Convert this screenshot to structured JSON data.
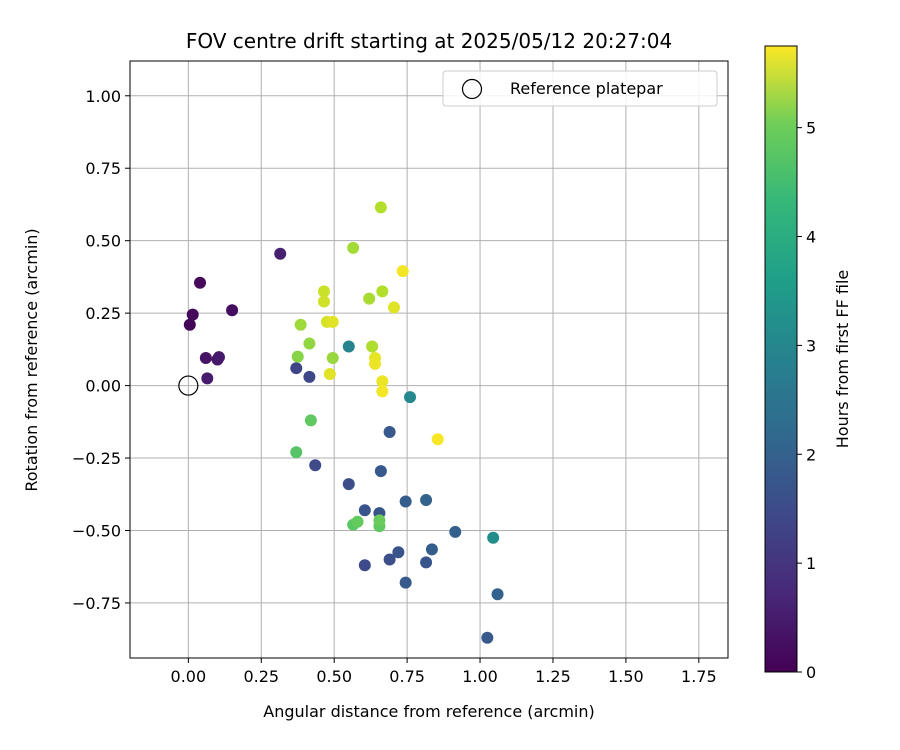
{
  "chart_data": {
    "type": "scatter",
    "title": "FOV centre drift starting at 2025/05/12 20:27:04",
    "xlabel": "Angular distance from reference (arcmin)",
    "ylabel": "Rotation from reference (arcmin)",
    "xlim": [
      -0.2,
      1.85
    ],
    "ylim": [
      -0.94,
      1.12
    ],
    "xticks": [
      0.0,
      0.25,
      0.5,
      0.75,
      1.0,
      1.25,
      1.5,
      1.75
    ],
    "xtick_labels": [
      "0.00",
      "0.25",
      "0.50",
      "0.75",
      "1.00",
      "1.25",
      "1.50",
      "1.75"
    ],
    "yticks": [
      -0.75,
      -0.5,
      -0.25,
      0.0,
      0.25,
      0.5,
      0.75,
      1.0
    ],
    "ytick_labels": [
      "−0.75",
      "−0.50",
      "−0.25",
      "0.00",
      "0.25",
      "0.50",
      "0.75",
      "1.00"
    ],
    "grid": true,
    "legend": {
      "placement": "top-right",
      "entries": [
        "Reference platepar"
      ]
    },
    "reference_point": {
      "x": 0.0,
      "y": 0.0
    },
    "colorbar": {
      "label": "Hours from first FF file",
      "range": [
        0,
        5.75
      ],
      "ticks": [
        0,
        1,
        2,
        3,
        4,
        5
      ],
      "tick_labels": [
        "0",
        "1",
        "2",
        "3",
        "4",
        "5"
      ],
      "colormap": "viridis"
    },
    "points": [
      {
        "x": 0.04,
        "y": 0.355,
        "t": 0.15
      },
      {
        "x": 0.015,
        "y": 0.245,
        "t": 0.1
      },
      {
        "x": 0.005,
        "y": 0.21,
        "t": 0.05
      },
      {
        "x": 0.15,
        "y": 0.26,
        "t": 0.2
      },
      {
        "x": 0.06,
        "y": 0.095,
        "t": 0.3
      },
      {
        "x": 0.1,
        "y": 0.09,
        "t": 0.35
      },
      {
        "x": 0.105,
        "y": 0.098,
        "t": 0.4
      },
      {
        "x": 0.065,
        "y": 0.025,
        "t": 0.45
      },
      {
        "x": 0.315,
        "y": 0.455,
        "t": 0.5
      },
      {
        "x": 0.37,
        "y": 0.06,
        "t": 1.2
      },
      {
        "x": 0.415,
        "y": 0.03,
        "t": 1.25
      },
      {
        "x": 0.435,
        "y": -0.275,
        "t": 1.3
      },
      {
        "x": 0.55,
        "y": -0.34,
        "t": 1.4
      },
      {
        "x": 0.605,
        "y": -0.43,
        "t": 1.5
      },
      {
        "x": 0.655,
        "y": -0.44,
        "t": 1.5
      },
      {
        "x": 0.66,
        "y": -0.295,
        "t": 1.6
      },
      {
        "x": 0.69,
        "y": -0.16,
        "t": 1.6
      },
      {
        "x": 0.605,
        "y": -0.62,
        "t": 1.3
      },
      {
        "x": 0.69,
        "y": -0.6,
        "t": 1.4
      },
      {
        "x": 0.72,
        "y": -0.575,
        "t": 1.5
      },
      {
        "x": 0.745,
        "y": -0.4,
        "t": 1.7
      },
      {
        "x": 0.745,
        "y": -0.68,
        "t": 1.6
      },
      {
        "x": 0.815,
        "y": -0.395,
        "t": 1.8
      },
      {
        "x": 0.815,
        "y": -0.61,
        "t": 1.5
      },
      {
        "x": 0.835,
        "y": -0.565,
        "t": 1.7
      },
      {
        "x": 0.915,
        "y": -0.505,
        "t": 1.75
      },
      {
        "x": 1.025,
        "y": -0.87,
        "t": 1.6
      },
      {
        "x": 1.06,
        "y": -0.72,
        "t": 1.8
      },
      {
        "x": 0.55,
        "y": 0.135,
        "t": 2.6
      },
      {
        "x": 0.76,
        "y": -0.04,
        "t": 2.7
      },
      {
        "x": 1.045,
        "y": -0.525,
        "t": 2.8
      },
      {
        "x": 0.37,
        "y": -0.23,
        "t": 4.2
      },
      {
        "x": 0.42,
        "y": -0.12,
        "t": 4.3
      },
      {
        "x": 0.565,
        "y": -0.48,
        "t": 4.25
      },
      {
        "x": 0.58,
        "y": -0.47,
        "t": 4.35
      },
      {
        "x": 0.655,
        "y": -0.485,
        "t": 4.3
      },
      {
        "x": 0.655,
        "y": -0.465,
        "t": 4.4
      },
      {
        "x": 0.375,
        "y": 0.1,
        "t": 4.7
      },
      {
        "x": 0.385,
        "y": 0.21,
        "t": 4.9
      },
      {
        "x": 0.415,
        "y": 0.145,
        "t": 4.8
      },
      {
        "x": 0.495,
        "y": 0.095,
        "t": 4.85
      },
      {
        "x": 0.565,
        "y": 0.475,
        "t": 4.95
      },
      {
        "x": 0.62,
        "y": 0.3,
        "t": 5.0
      },
      {
        "x": 0.63,
        "y": 0.135,
        "t": 5.05
      },
      {
        "x": 0.66,
        "y": 0.615,
        "t": 5.1
      },
      {
        "x": 0.665,
        "y": 0.325,
        "t": 5.1
      },
      {
        "x": 0.465,
        "y": 0.325,
        "t": 5.3
      },
      {
        "x": 0.465,
        "y": 0.29,
        "t": 5.35
      },
      {
        "x": 0.475,
        "y": 0.22,
        "t": 5.4
      },
      {
        "x": 0.495,
        "y": 0.22,
        "t": 5.5
      },
      {
        "x": 0.485,
        "y": 0.04,
        "t": 5.5
      },
      {
        "x": 0.64,
        "y": 0.095,
        "t": 5.55
      },
      {
        "x": 0.64,
        "y": 0.075,
        "t": 5.6
      },
      {
        "x": 0.665,
        "y": 0.015,
        "t": 5.6
      },
      {
        "x": 0.665,
        "y": -0.02,
        "t": 5.65
      },
      {
        "x": 0.705,
        "y": 0.27,
        "t": 5.5
      },
      {
        "x": 0.735,
        "y": 0.395,
        "t": 5.65
      },
      {
        "x": 0.855,
        "y": -0.185,
        "t": 5.7
      }
    ]
  }
}
